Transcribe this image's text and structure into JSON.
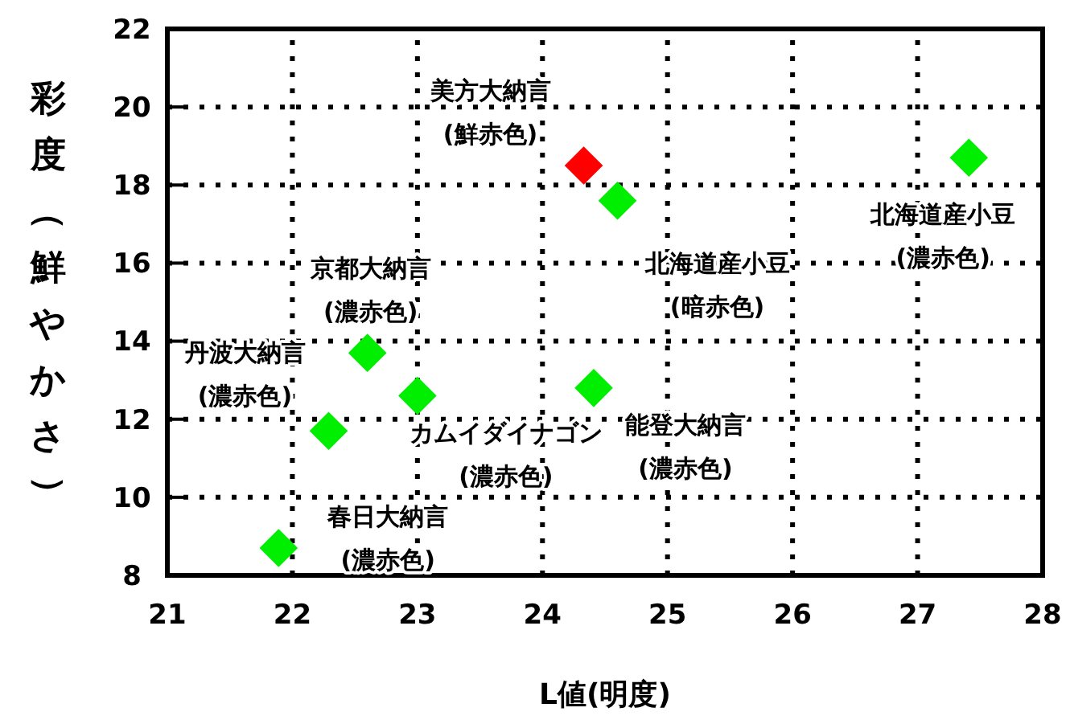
{
  "chart_data": {
    "type": "scatter",
    "xlabel": "L値(明度)",
    "ylabel": "彩度（鮮やかさ）",
    "x": [
      24.33,
      24.6,
      27.41,
      22.6,
      23.0,
      24.41,
      22.29,
      21.89
    ],
    "values": [
      18.5,
      17.6,
      18.7,
      13.7,
      12.6,
      12.8,
      11.7,
      8.7
    ],
    "colors": [
      "#ff0000",
      "#00ee00",
      "#00ee00",
      "#00ee00",
      "#00ee00",
      "#00ee00",
      "#00ee00",
      "#00ee00"
    ],
    "marker": "diamond",
    "grid": true,
    "xlim": [
      21,
      28
    ],
    "xticks": [
      21,
      22,
      23,
      24,
      25,
      26,
      27,
      28
    ],
    "ylim": [
      8,
      22
    ],
    "yticks": [
      8,
      10,
      12,
      14,
      16,
      18,
      20,
      22
    ],
    "annotations": [
      {
        "text": "美方大納言\n(鮮赤色)",
        "x": 24.33,
        "y": 18.5
      },
      {
        "text": "北海道産小豆\n(暗赤色)",
        "x": 24.6,
        "y": 17.6
      },
      {
        "text": "北海道産小豆\n(濃赤色)",
        "x": 27.41,
        "y": 18.7
      },
      {
        "text": "京都大納言\n(濃赤色)",
        "x": 22.6,
        "y": 13.7
      },
      {
        "text": "カムイダイナゴン\n(濃赤色)",
        "x": 23.0,
        "y": 12.6
      },
      {
        "text": "能登大納言\n(濃赤色)",
        "x": 24.41,
        "y": 12.8
      },
      {
        "text": "丹波大納言\n(濃赤色)",
        "x": 22.29,
        "y": 11.7
      },
      {
        "text": "春日大納言\n(濃赤色)",
        "x": 21.89,
        "y": 8.7
      }
    ]
  }
}
